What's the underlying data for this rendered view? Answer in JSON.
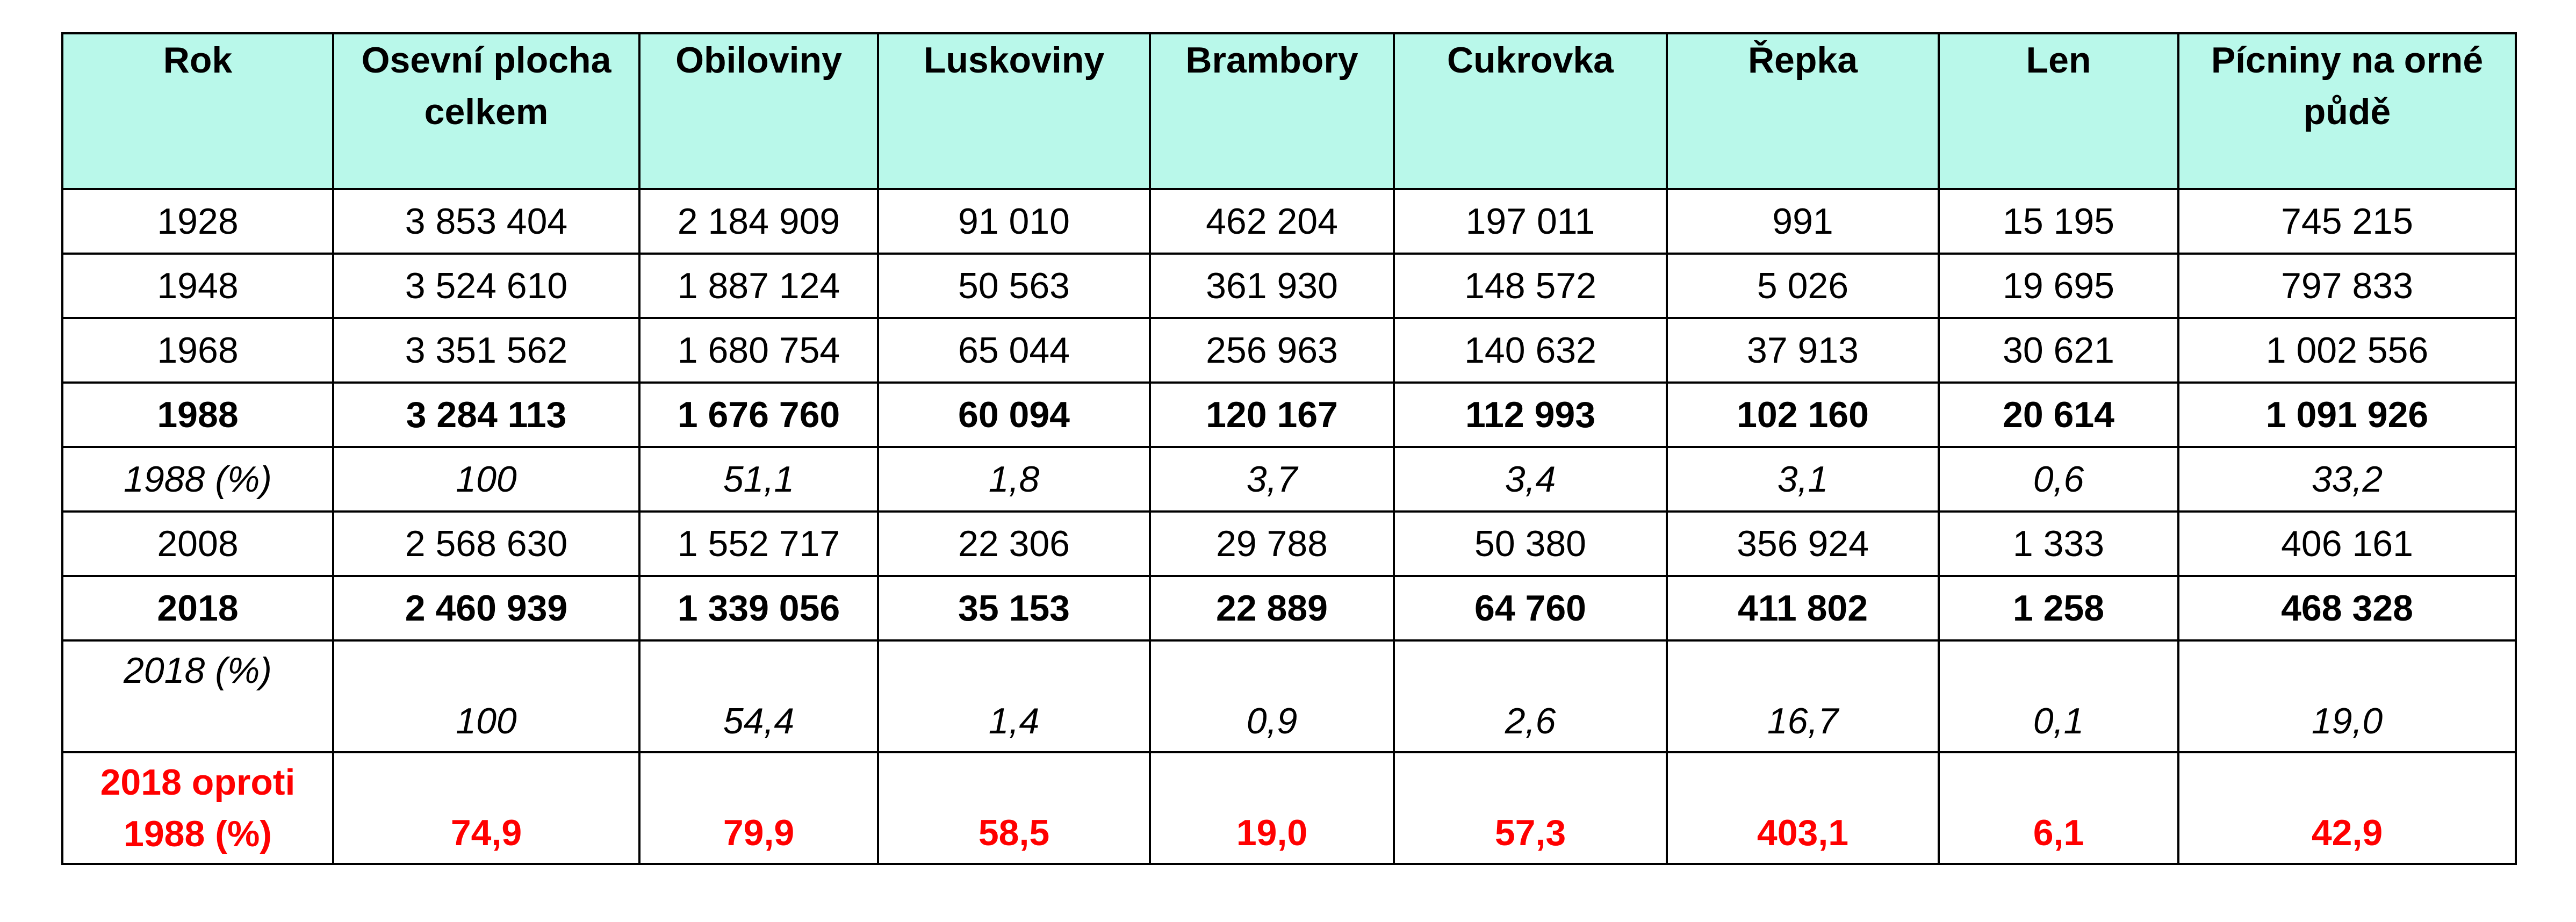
{
  "table": {
    "headers": [
      "Rok",
      "Osevní plocha celkem",
      "Obiloviny",
      "Luskoviny",
      "Brambory",
      "Cukrovka",
      "Řepka",
      "Len",
      "Pícniny na orné půdě"
    ],
    "rows": [
      {
        "style": "normal",
        "cells": [
          "1928",
          "3 853 404",
          "2 184 909",
          "91 010",
          "462 204",
          "197 011",
          "991",
          "15 195",
          "745 215"
        ]
      },
      {
        "style": "normal",
        "cells": [
          "1948",
          "3 524 610",
          "1 887 124",
          "50 563",
          "361 930",
          "148 572",
          "5 026",
          "19 695",
          "797 833"
        ]
      },
      {
        "style": "normal",
        "cells": [
          "1968",
          "3 351 562",
          "1 680 754",
          "65 044",
          "256 963",
          "140 632",
          "37 913",
          "30 621",
          "1 002 556"
        ]
      },
      {
        "style": "bold",
        "cells": [
          "1988",
          "3 284 113",
          "1 676 760",
          "60 094",
          "120 167",
          "112 993",
          "102 160",
          "20 614",
          "1 091 926"
        ]
      },
      {
        "style": "pct",
        "cells": [
          "1988 (%)",
          "100",
          "51,1",
          "1,8",
          "3,7",
          "3,4",
          "3,1",
          "0,6",
          "33,2"
        ]
      },
      {
        "style": "normal",
        "cells": [
          "2008",
          "2 568 630",
          "1 552 717",
          "22 306",
          "29 788",
          "50 380",
          "356 924",
          "1 333",
          "406 161"
        ]
      },
      {
        "style": "bold",
        "cells": [
          "2018",
          "2 460 939",
          "1 339 056",
          "35 153",
          "22 889",
          "64 760",
          "411 802",
          "1 258",
          "468 328"
        ]
      },
      {
        "style": "pct2",
        "cells": [
          "2018 (%)",
          "100",
          "54,4",
          "1,4",
          "0,9",
          "2,6",
          "16,7",
          "0,1",
          "19,0"
        ]
      },
      {
        "style": "change",
        "cells": [
          "2018 oproti 1988 (%)",
          "74,9",
          "79,9",
          "58,5",
          "19,0",
          "57,3",
          "403,1",
          "6,1",
          "42,9"
        ]
      }
    ]
  },
  "colors": {
    "header_bg": "#b9f8ea",
    "highlight_text": "#ff0000",
    "border": "#000000"
  }
}
